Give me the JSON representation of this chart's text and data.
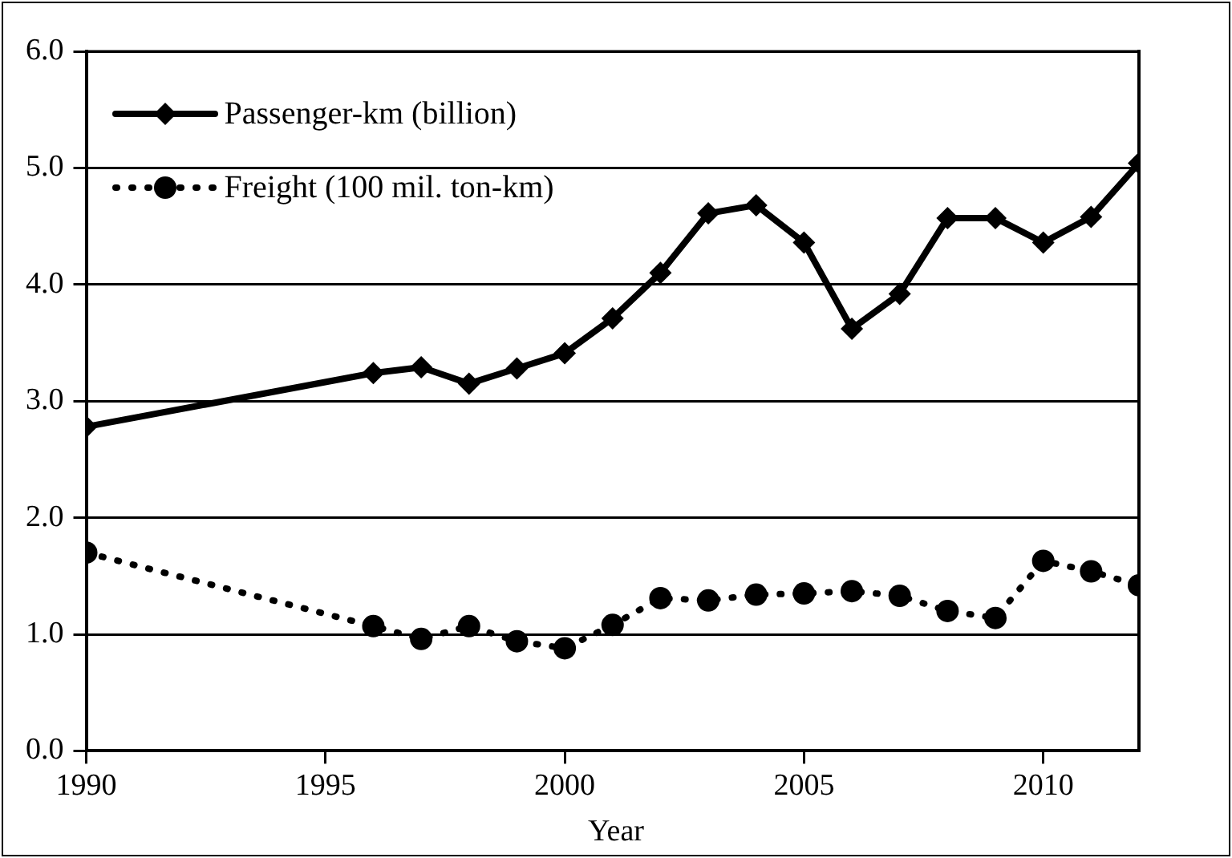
{
  "chart_data": {
    "type": "line",
    "xlabel": "Year",
    "x": [
      1990,
      1996,
      1997,
      1998,
      1999,
      2000,
      2001,
      2002,
      2003,
      2004,
      2005,
      2006,
      2007,
      2008,
      2009,
      2010,
      2011,
      2012
    ],
    "series": [
      {
        "name": "Passenger-km (billion)",
        "color": "#000000",
        "marker": "diamond",
        "line_style": "solid",
        "values": [
          2.78,
          3.24,
          3.29,
          3.15,
          3.28,
          3.41,
          3.71,
          4.1,
          4.61,
          4.68,
          4.36,
          3.62,
          3.92,
          4.57,
          4.57,
          4.36,
          4.58,
          5.04
        ]
      },
      {
        "name": "Freight (100 mil. ton-km)",
        "color": "#000000",
        "marker": "circle",
        "line_style": "dotted",
        "values": [
          1.7,
          1.07,
          0.96,
          1.07,
          0.94,
          0.88,
          1.08,
          1.31,
          1.29,
          1.34,
          1.35,
          1.37,
          1.33,
          1.2,
          1.14,
          1.63,
          1.54,
          1.42
        ]
      }
    ],
    "xlim": [
      1990,
      2012
    ],
    "xticks": [
      1990,
      1995,
      2000,
      2005,
      2010
    ],
    "ylim": [
      0,
      6
    ],
    "yticks": [
      {
        "value": 0,
        "label": "0.0"
      },
      {
        "value": 1,
        "label": "1.0"
      },
      {
        "value": 2,
        "label": "2.0"
      },
      {
        "value": 3,
        "label": "3.0"
      },
      {
        "value": 4,
        "label": "4.0"
      },
      {
        "value": 5,
        "label": "5.0"
      },
      {
        "value": 6,
        "label": "6.0"
      }
    ],
    "grid": "y",
    "legend": "top left"
  }
}
